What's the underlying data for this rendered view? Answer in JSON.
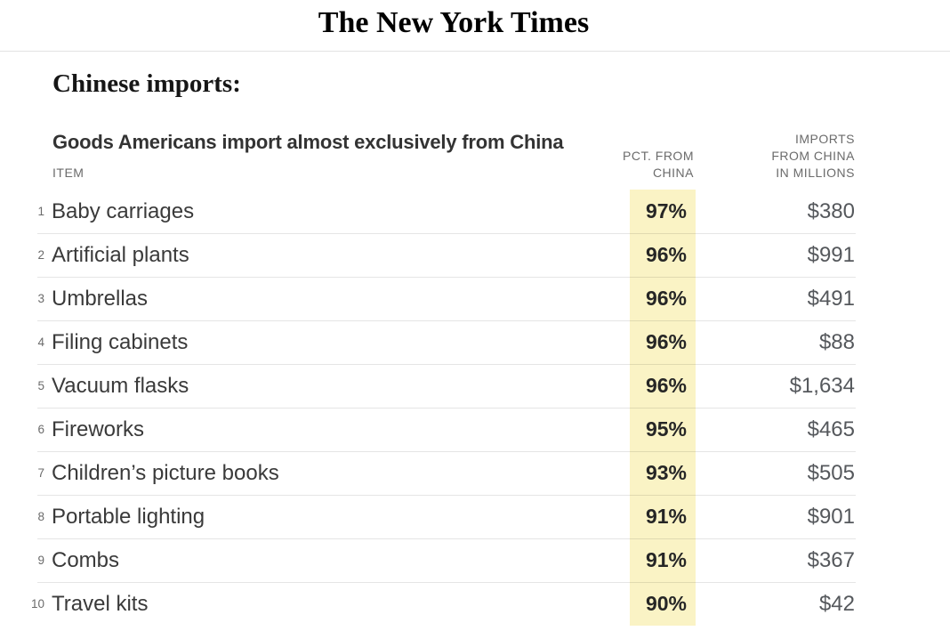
{
  "masthead": {
    "logo": "The New York Times"
  },
  "article": {
    "kicker": "Chinese imports:"
  },
  "table": {
    "title": "Goods Americans import almost exclusively from China",
    "headers": {
      "item": "ITEM",
      "pct": "PCT. FROM\nCHINA",
      "imports": "IMPORTS\nFROM CHINA\nIN MILLIONS"
    },
    "highlight_color": "#faf3c5"
  },
  "chart_data": {
    "type": "table",
    "title": "Goods Americans import almost exclusively from China",
    "columns": [
      "ITEM",
      "PCT. FROM CHINA",
      "IMPORTS FROM CHINA IN MILLIONS"
    ],
    "highlighted_column": "PCT. FROM CHINA",
    "rows": [
      {
        "rank": 1,
        "item": "Baby carriages",
        "pct_from_china": "97%",
        "imports_millions": "$380"
      },
      {
        "rank": 2,
        "item": "Artificial plants",
        "pct_from_china": "96%",
        "imports_millions": "$991"
      },
      {
        "rank": 3,
        "item": "Umbrellas",
        "pct_from_china": "96%",
        "imports_millions": "$491"
      },
      {
        "rank": 4,
        "item": "Filing cabinets",
        "pct_from_china": "96%",
        "imports_millions": "$88"
      },
      {
        "rank": 5,
        "item": "Vacuum flasks",
        "pct_from_china": "96%",
        "imports_millions": "$1,634"
      },
      {
        "rank": 6,
        "item": "Fireworks",
        "pct_from_china": "95%",
        "imports_millions": "$465"
      },
      {
        "rank": 7,
        "item": "Children’s picture books",
        "pct_from_china": "93%",
        "imports_millions": "$505"
      },
      {
        "rank": 8,
        "item": "Portable lighting",
        "pct_from_china": "91%",
        "imports_millions": "$901"
      },
      {
        "rank": 9,
        "item": "Combs",
        "pct_from_china": "91%",
        "imports_millions": "$367"
      },
      {
        "rank": 10,
        "item": "Travel kits",
        "pct_from_china": "90%",
        "imports_millions": "$42"
      }
    ]
  }
}
